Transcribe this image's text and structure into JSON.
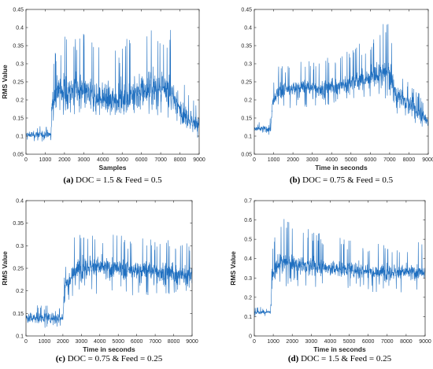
{
  "chart_data": [
    {
      "type": "line",
      "caption_letter": "(a)",
      "caption_text": "DOC = 1.5 & Feed = 0.5",
      "xlabel": "Samples",
      "ylabel": "RMS Value",
      "xlim": [
        0,
        9000
      ],
      "ylim": [
        0.05,
        0.45
      ],
      "xticks": [
        0,
        1000,
        2000,
        3000,
        4000,
        5000,
        6000,
        7000,
        8000,
        9000
      ],
      "yticks": [
        0.05,
        0.1,
        0.15,
        0.2,
        0.25,
        0.3,
        0.35,
        0.4,
        0.45
      ],
      "ytick_labels": [
        "0.05",
        "0.1",
        "0.15",
        "0.2",
        "0.25",
        "0.3",
        "0.35",
        "0.4",
        "0.45"
      ],
      "color": "#1f6fc0",
      "series": [
        {
          "x": [
            0,
            1300,
            1350,
            1600,
            2500,
            3500,
            4500,
            5500,
            6500,
            7500,
            8000,
            8500,
            9000
          ],
          "mean": [
            0.103,
            0.105,
            0.19,
            0.225,
            0.225,
            0.21,
            0.2,
            0.215,
            0.235,
            0.22,
            0.175,
            0.145,
            0.13
          ],
          "spread": [
            0.012,
            0.012,
            0.05,
            0.06,
            0.06,
            0.055,
            0.05,
            0.06,
            0.065,
            0.06,
            0.04,
            0.035,
            0.03
          ],
          "peak": [
            0.127,
            0.128,
            0.3,
            0.36,
            0.41,
            0.37,
            0.33,
            0.39,
            0.42,
            0.4,
            0.3,
            0.25,
            0.2
          ],
          "trough": [
            0.085,
            0.085,
            0.14,
            0.15,
            0.16,
            0.155,
            0.155,
            0.16,
            0.16,
            0.15,
            0.13,
            0.11,
            0.09
          ]
        }
      ]
    },
    {
      "type": "line",
      "caption_letter": "(b)",
      "caption_text": "DOC = 0.75 & Feed = 0.5",
      "xlabel": "Time in seconds",
      "ylabel": "",
      "xlim": [
        0,
        9000
      ],
      "ylim": [
        0.05,
        0.45
      ],
      "xticks": [
        0,
        1000,
        2000,
        3000,
        4000,
        5000,
        6000,
        7000,
        8000,
        9000
      ],
      "yticks": [
        0.05,
        0.1,
        0.15,
        0.2,
        0.25,
        0.3,
        0.35,
        0.4,
        0.45
      ],
      "ytick_labels": [
        "0.05",
        "0.1",
        "0.15",
        "0.2",
        "0.25",
        "0.3",
        "0.35",
        "0.4",
        "0.45"
      ],
      "color": "#1f6fc0",
      "series": [
        {
          "x": [
            0,
            850,
            950,
            1300,
            2500,
            3500,
            4500,
            5500,
            6500,
            7000,
            7300,
            8000,
            9000
          ],
          "mean": [
            0.12,
            0.12,
            0.19,
            0.225,
            0.235,
            0.23,
            0.24,
            0.255,
            0.27,
            0.275,
            0.22,
            0.19,
            0.14
          ],
          "spread": [
            0.012,
            0.012,
            0.03,
            0.03,
            0.03,
            0.03,
            0.03,
            0.035,
            0.04,
            0.045,
            0.035,
            0.03,
            0.025
          ],
          "peak": [
            0.15,
            0.15,
            0.24,
            0.3,
            0.31,
            0.32,
            0.33,
            0.36,
            0.41,
            0.42,
            0.3,
            0.25,
            0.2
          ],
          "trough": [
            0.1,
            0.1,
            0.15,
            0.175,
            0.18,
            0.18,
            0.19,
            0.2,
            0.2,
            0.2,
            0.16,
            0.15,
            0.1
          ]
        }
      ]
    },
    {
      "type": "line",
      "caption_letter": "(c)",
      "caption_text": "DOC = 0.75 & Feed = 0.25",
      "xlabel": "Time in seconds",
      "ylabel": "RMS Value",
      "xlim": [
        0,
        9000
      ],
      "ylim": [
        0.1,
        0.4
      ],
      "xticks": [
        0,
        1000,
        2000,
        3000,
        4000,
        5000,
        6000,
        7000,
        8000,
        9000
      ],
      "yticks": [
        0.1,
        0.15,
        0.2,
        0.25,
        0.3,
        0.35,
        0.4
      ],
      "ytick_labels": [
        "0.1",
        "0.15",
        "0.2",
        "0.25",
        "0.3",
        "0.35",
        "0.4"
      ],
      "color": "#1f6fc0",
      "series": [
        {
          "x": [
            0,
            2000,
            2100,
            2600,
            3500,
            4500,
            5500,
            6500,
            7500,
            8500,
            9000
          ],
          "mean": [
            0.14,
            0.14,
            0.21,
            0.245,
            0.255,
            0.25,
            0.245,
            0.245,
            0.24,
            0.235,
            0.235
          ],
          "spread": [
            0.015,
            0.015,
            0.025,
            0.03,
            0.03,
            0.03,
            0.03,
            0.03,
            0.03,
            0.03,
            0.03
          ],
          "peak": [
            0.17,
            0.17,
            0.27,
            0.33,
            0.36,
            0.33,
            0.32,
            0.32,
            0.32,
            0.31,
            0.31
          ],
          "trough": [
            0.115,
            0.115,
            0.17,
            0.19,
            0.19,
            0.19,
            0.19,
            0.19,
            0.19,
            0.19,
            0.19
          ]
        }
      ]
    },
    {
      "type": "line",
      "caption_letter": "(d)",
      "caption_text": "DOC = 1.5 & Feed = 0.25",
      "xlabel": "Time in seconds",
      "ylabel": "RMS Value",
      "xlim": [
        0,
        9000
      ],
      "ylim": [
        0,
        0.7
      ],
      "xticks": [
        0,
        1000,
        2000,
        3000,
        4000,
        5000,
        6000,
        7000,
        8000,
        9000
      ],
      "yticks": [
        0,
        0.1,
        0.2,
        0.3,
        0.4,
        0.5,
        0.6,
        0.7
      ],
      "ytick_labels": [
        "0",
        "0.1",
        "0.2",
        "0.3",
        "0.4",
        "0.5",
        "0.6",
        "0.7"
      ],
      "color": "#1f6fc0",
      "series": [
        {
          "x": [
            0,
            850,
            950,
            1300,
            2500,
            4000,
            5500,
            7000,
            8500,
            9000
          ],
          "mean": [
            0.12,
            0.125,
            0.3,
            0.38,
            0.37,
            0.35,
            0.34,
            0.33,
            0.33,
            0.32
          ],
          "spread": [
            0.012,
            0.012,
            0.06,
            0.06,
            0.055,
            0.05,
            0.05,
            0.05,
            0.05,
            0.05
          ],
          "peak": [
            0.15,
            0.15,
            0.52,
            0.62,
            0.58,
            0.53,
            0.5,
            0.5,
            0.5,
            0.47
          ],
          "trough": [
            0.1,
            0.1,
            0.22,
            0.25,
            0.25,
            0.24,
            0.23,
            0.22,
            0.22,
            0.22
          ]
        }
      ]
    }
  ]
}
